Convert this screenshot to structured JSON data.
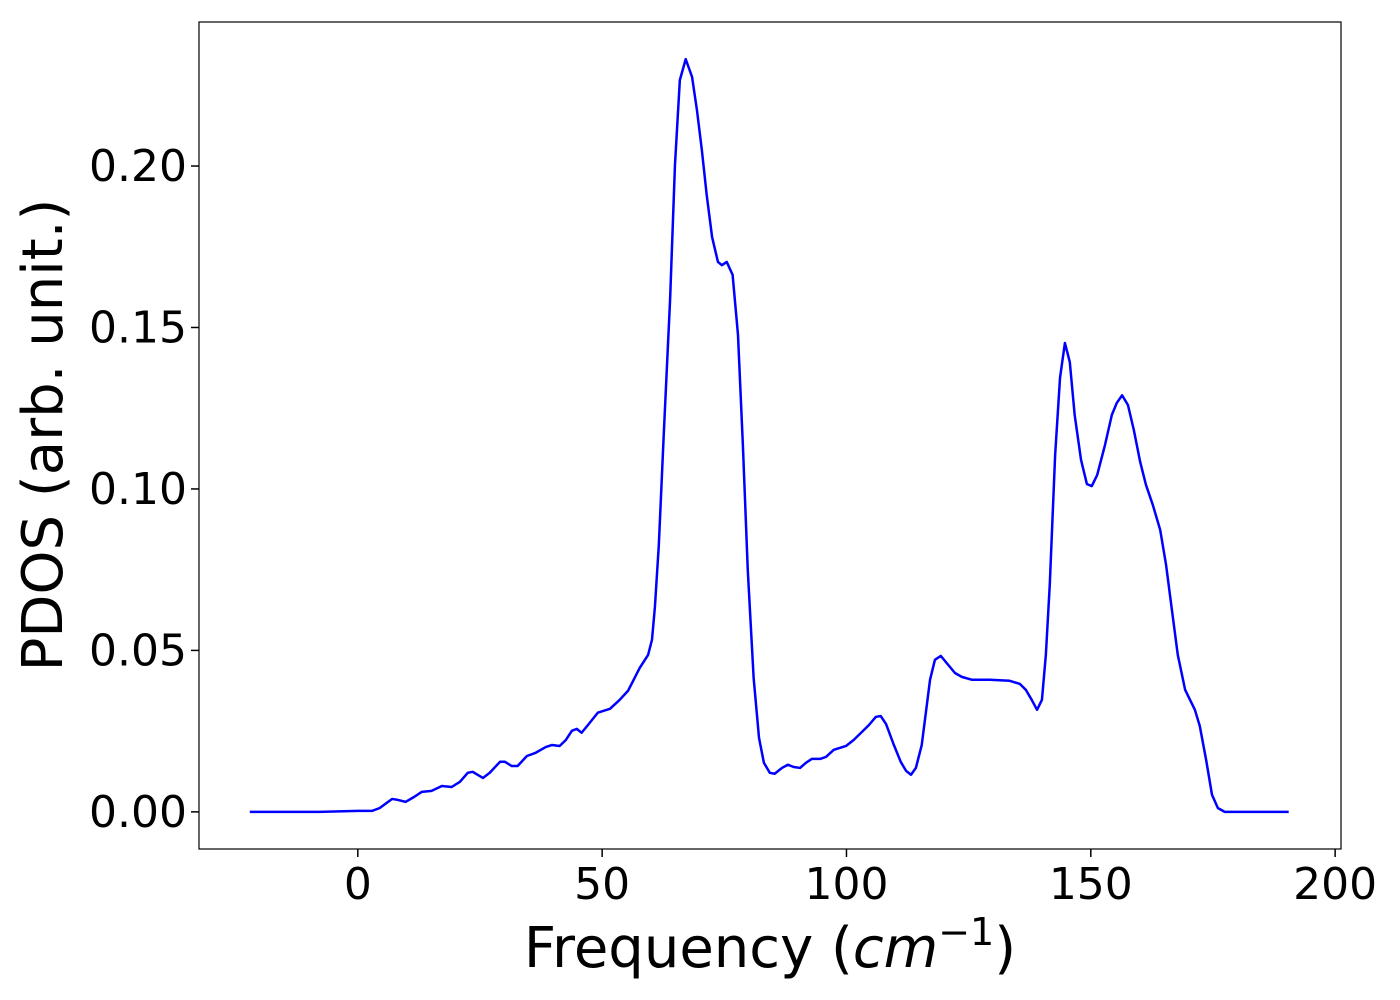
{
  "chart_data": {
    "type": "line",
    "xlabel": {
      "text": "Frequency (",
      "math": "cm",
      "sup": "−1",
      "close": ")"
    },
    "ylabel": "PDOS (arb. unit.)",
    "xlim": [
      -32.5,
      201.2
    ],
    "ylim": [
      -0.0115,
      0.2446
    ],
    "xticks": [
      0,
      50,
      100,
      150,
      200
    ],
    "yticks": [
      {
        "value": 0,
        "label": "0.00"
      },
      {
        "value": 0.05,
        "label": "0.05"
      },
      {
        "value": 0.1,
        "label": "0.10"
      },
      {
        "value": 0.15,
        "label": "0.15"
      },
      {
        "value": 0.2,
        "label": "0.20"
      }
    ],
    "grid": false,
    "series": [
      {
        "color": "#0000ff",
        "x": [
          -22.1,
          -7.8,
          0,
          2.9,
          4.5,
          7.0,
          8.2,
          9.8,
          11.5,
          13.1,
          15.1,
          17.2,
          19.2,
          20.9,
          22.5,
          23.5,
          25.6,
          27.0,
          29.1,
          30.1,
          31.5,
          32.7,
          34.6,
          36.4,
          38.5,
          39.7,
          41.3,
          42.6,
          43.8,
          44.8,
          45.8,
          47.1,
          49.1,
          51.6,
          53.6,
          55.3,
          57.7,
          59.4,
          60.2,
          60.8,
          61.6,
          62.6,
          63.9,
          64.9,
          65.9,
          67.1,
          68.4,
          69.4,
          70.4,
          71.4,
          72.5,
          73.7,
          74.5,
          75.5,
          76.7,
          77.8,
          78.8,
          79.8,
          81.0,
          82.1,
          83.1,
          84.3,
          85.3,
          86.8,
          88.0,
          89.2,
          90.5,
          91.7,
          92.9,
          94.6,
          95.8,
          97.4,
          99.9,
          101.5,
          103.2,
          104.6,
          106.0,
          107.0,
          108.1,
          109.7,
          111.1,
          112.2,
          113.2,
          114.2,
          115.4,
          117.1,
          118.1,
          119.3,
          120.5,
          122.2,
          123.6,
          125.7,
          129.3,
          133.4,
          135.5,
          136.7,
          137.9,
          139.0,
          140.0,
          140.8,
          141.6,
          142.7,
          143.7,
          144.7,
          145.7,
          146.7,
          148.0,
          149.2,
          150.2,
          151.3,
          152.9,
          154.3,
          155.3,
          156.4,
          157.6,
          158.8,
          160.1,
          161.3,
          162.7,
          164.2,
          165.4,
          166.6,
          167.8,
          169.3,
          171.3,
          172.3,
          173.6,
          174.8,
          176.0,
          177.4,
          180.5,
          190.5
        ],
        "values": [
          0,
          0,
          0.0003,
          0.0003,
          0.0012,
          0.004,
          0.0037,
          0.0031,
          0.0046,
          0.0062,
          0.0065,
          0.008,
          0.0077,
          0.0093,
          0.0121,
          0.0124,
          0.0105,
          0.0121,
          0.0155,
          0.0155,
          0.0142,
          0.0142,
          0.0173,
          0.0183,
          0.0201,
          0.0207,
          0.0204,
          0.0223,
          0.0251,
          0.0257,
          0.0245,
          0.0269,
          0.0307,
          0.0319,
          0.0347,
          0.0375,
          0.0446,
          0.0486,
          0.0533,
          0.0635,
          0.0827,
          0.1167,
          0.1585,
          0.2003,
          0.2266,
          0.2331,
          0.2276,
          0.2173,
          0.205,
          0.191,
          0.178,
          0.1703,
          0.1693,
          0.1703,
          0.1663,
          0.1477,
          0.1136,
          0.0749,
          0.0415,
          0.0229,
          0.0152,
          0.0121,
          0.0118,
          0.0136,
          0.0146,
          0.0139,
          0.0136,
          0.0152,
          0.0164,
          0.0164,
          0.017,
          0.0192,
          0.0204,
          0.0223,
          0.0248,
          0.0269,
          0.0294,
          0.0297,
          0.0272,
          0.0207,
          0.0155,
          0.0127,
          0.0115,
          0.0136,
          0.0207,
          0.0409,
          0.0471,
          0.0483,
          0.0461,
          0.043,
          0.0418,
          0.0409,
          0.0409,
          0.0406,
          0.0396,
          0.0378,
          0.0347,
          0.0316,
          0.0347,
          0.0486,
          0.0703,
          0.1105,
          0.1344,
          0.1452,
          0.1393,
          0.1229,
          0.109,
          0.1015,
          0.1009,
          0.1043,
          0.1136,
          0.1229,
          0.1266,
          0.129,
          0.126,
          0.1183,
          0.1084,
          0.1012,
          0.095,
          0.0873,
          0.0765,
          0.0625,
          0.0486,
          0.0378,
          0.0316,
          0.0266,
          0.0161,
          0.0053,
          0.0012,
          0,
          0,
          0
        ]
      }
    ]
  }
}
